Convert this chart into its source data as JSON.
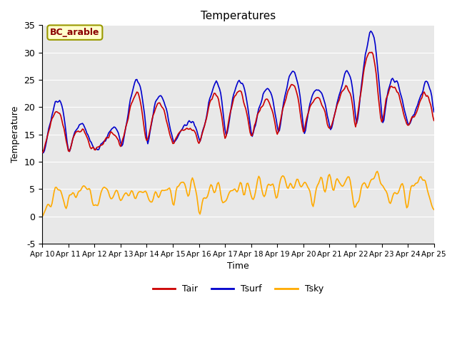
{
  "title": "Temperatures",
  "xlabel": "Time",
  "ylabel": "Temperature",
  "annotation": "BC_arable",
  "ylim": [
    -5,
    35
  ],
  "xlim": [
    0,
    360
  ],
  "xtick_labels": [
    "Apr 10",
    "Apr 11",
    "Apr 12",
    "Apr 13",
    "Apr 14",
    "Apr 15",
    "Apr 16",
    "Apr 17",
    "Apr 18",
    "Apr 19",
    "Apr 20",
    "Apr 21",
    "Apr 22",
    "Apr 23",
    "Apr 24",
    "Apr 25"
  ],
  "xtick_positions": [
    0,
    24,
    48,
    72,
    96,
    120,
    144,
    168,
    192,
    216,
    240,
    264,
    288,
    312,
    336,
    360
  ],
  "ytick_labels": [
    "-5",
    "0",
    "5",
    "10",
    "15",
    "20",
    "25",
    "30",
    "35"
  ],
  "ytick_values": [
    -5,
    0,
    5,
    10,
    15,
    20,
    25,
    30,
    35
  ],
  "line_Tair_color": "#cc0000",
  "line_Tsurf_color": "#0000cc",
  "line_Tsky_color": "#ffaa00",
  "line_width": 1.2,
  "bg_color": "#e8e8e8",
  "legend_Tair": "Tair",
  "legend_Tsurf": "Tsurf",
  "legend_Tsky": "Tsky"
}
